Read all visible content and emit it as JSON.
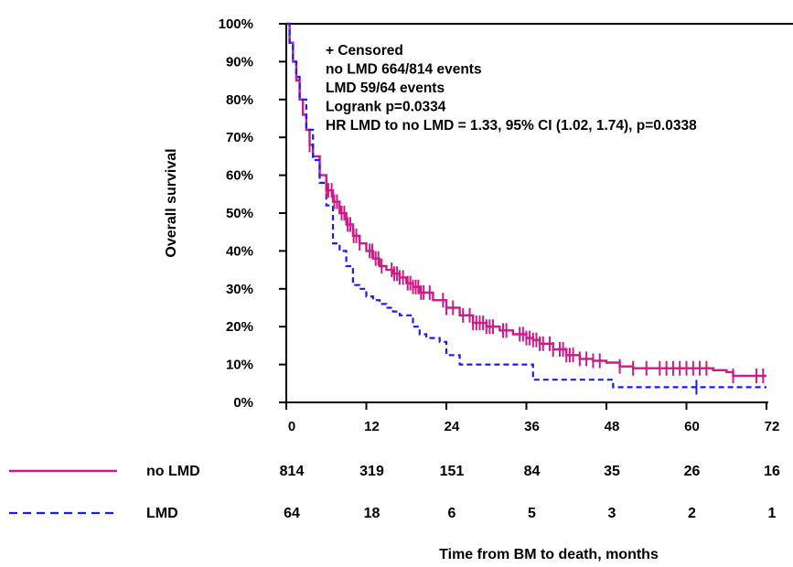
{
  "chart_data": {
    "type": "line",
    "subtype": "kaplan-meier",
    "ylabel": "Overall survival",
    "xlabel": "Time from BM to death, months",
    "xticks": [
      0,
      12,
      24,
      36,
      48,
      60,
      72
    ],
    "xticks_labels": [
      "0",
      "12",
      "24",
      "36",
      "48",
      "60",
      "72"
    ],
    "yticks": [
      0,
      10,
      20,
      30,
      40,
      50,
      60,
      70,
      80,
      90,
      100
    ],
    "yticks_labels": [
      "0%",
      "10%",
      "20%",
      "30%",
      "40%",
      "50%",
      "60%",
      "70%",
      "80%",
      "90%",
      "100%"
    ],
    "xlim": [
      0,
      72
    ],
    "ylim": [
      0,
      100
    ],
    "grid": false,
    "annotations": [
      "+ Censored",
      "no LMD  664/814 events",
      "LMD  59/64 events",
      "Logrank p=0.0334",
      "HR LMD to no LMD = 1.33, 95% CI (1.02, 1.74),  p=0.0338"
    ],
    "series": [
      {
        "name": "no LMD",
        "color": "#cc1a87",
        "style": "solid",
        "x": [
          0,
          0.5,
          1,
          1.5,
          2,
          2.5,
          3,
          3.5,
          4,
          5,
          6,
          7,
          8,
          9,
          10,
          11,
          12,
          13,
          14,
          15,
          16,
          17,
          18,
          19,
          20,
          22,
          24,
          26,
          28,
          30,
          32,
          34,
          36,
          37,
          38,
          40,
          42,
          44,
          46,
          48,
          50,
          52,
          54,
          56,
          58,
          60,
          62,
          64,
          66,
          67,
          72
        ],
        "y": [
          100,
          95,
          90,
          85,
          80,
          76,
          72,
          68,
          65,
          60,
          56,
          53,
          50,
          47,
          44,
          42,
          40,
          38,
          36,
          35,
          34,
          33,
          31.5,
          30.5,
          29,
          27,
          25,
          23,
          21,
          20,
          19,
          18,
          17,
          16.5,
          15.5,
          14,
          12.5,
          11.5,
          11,
          10.5,
          9.5,
          9,
          9,
          9,
          9,
          9,
          9,
          8.5,
          8,
          7,
          7
        ]
      },
      {
        "name": "LMD",
        "color": "#1a1aff",
        "style": "dashed",
        "x": [
          0,
          0.5,
          1,
          1.5,
          2,
          3,
          4,
          5,
          6,
          7,
          8,
          9,
          10,
          11,
          12,
          13,
          14,
          15,
          16,
          17,
          19,
          20,
          21,
          23,
          24,
          26,
          36,
          37,
          48,
          49,
          72
        ],
        "y": [
          100,
          95,
          90,
          86,
          80,
          72,
          64,
          58,
          52,
          42,
          40,
          36,
          31,
          30,
          28,
          27,
          26,
          25,
          24,
          23,
          20,
          18,
          17,
          16,
          12.5,
          10,
          10,
          6,
          6,
          4,
          4
        ]
      }
    ],
    "censored": {
      "no LMD": [
        3.5,
        6,
        6.3,
        6.8,
        7.2,
        7.6,
        8.3,
        8.7,
        9.2,
        9.6,
        10.1,
        10.5,
        11,
        12.5,
        12.9,
        13.4,
        13.8,
        14.3,
        15.8,
        16.2,
        16.6,
        17,
        17.5,
        18.2,
        18.6,
        19,
        19.4,
        19.8,
        20.2,
        20.6,
        21.5,
        23.5,
        24,
        25,
        26.5,
        27.5,
        28,
        28.5,
        29,
        29.5,
        30,
        30.5,
        31,
        32.5,
        33,
        35,
        35.5,
        36,
        36.5,
        37,
        37.5,
        38,
        38.5,
        39.5,
        40,
        41,
        41.5,
        42,
        42.5,
        43,
        44,
        45,
        46,
        47,
        50,
        52,
        54,
        56,
        57,
        58,
        59,
        60,
        61,
        62,
        63,
        67,
        70.5,
        71.5
      ],
      "LMD": [
        61.5
      ]
    },
    "risk_table": {
      "times": [
        0,
        12,
        24,
        36,
        48,
        60,
        72
      ],
      "rows": [
        {
          "name": "no LMD",
          "counts": [
            814,
            319,
            151,
            84,
            35,
            26,
            16
          ]
        },
        {
          "name": "LMD",
          "counts": [
            64,
            18,
            6,
            5,
            3,
            2,
            1
          ]
        }
      ]
    }
  }
}
